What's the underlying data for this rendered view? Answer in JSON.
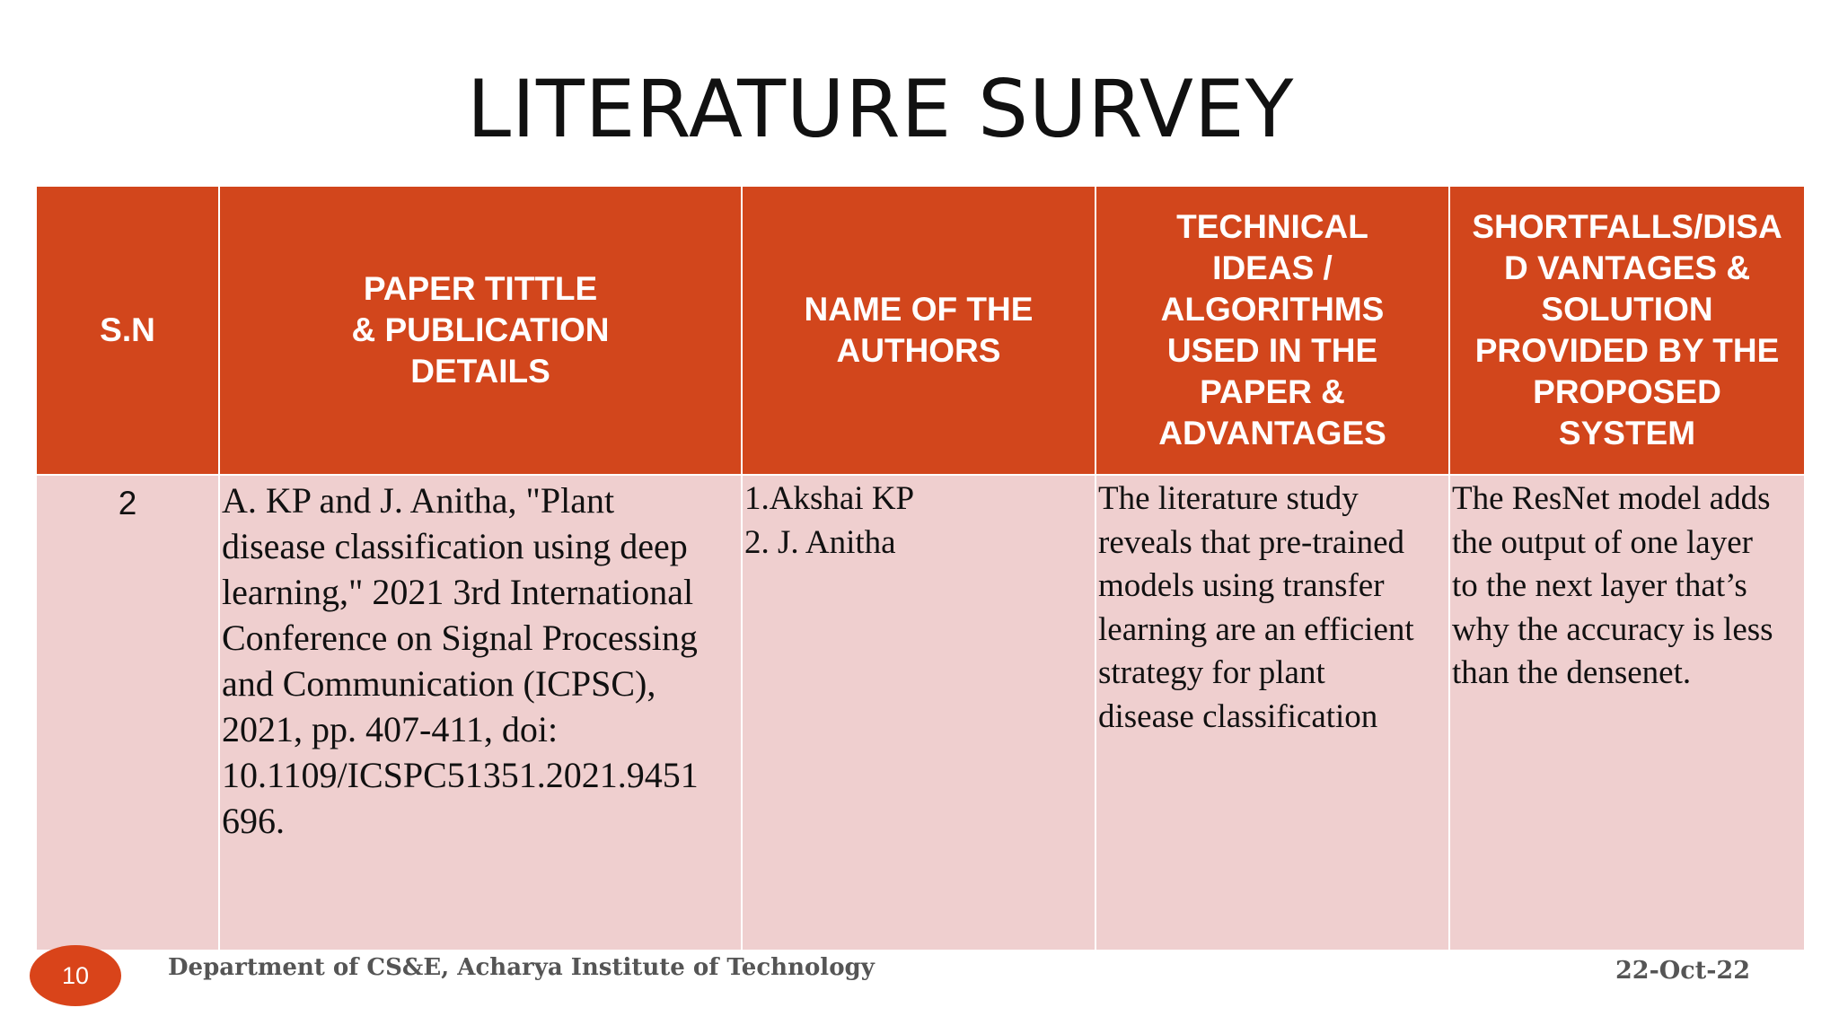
{
  "title": "LITERATURE SURVEY",
  "table": {
    "headers": [
      "S.N",
      "PAPER TITTLE\n& PUBLICATION\nDETAILS",
      "NAME OF THE\nAUTHORS",
      "TECHNICAL\nIDEAS /\nALGORITHMS\nUSED IN THE\nPAPER &\nADVANTAGES",
      "SHORTFALLS/DISA\nD VANTAGES  &\nSOLUTION\nPROVIDED BY THE\nPROPOSED\nSYSTEM"
    ],
    "row": {
      "sn": "2",
      "paper_lines": [
        "A. KP and J. Anitha, \"Plant",
        "disease classification using deep",
        "learning,\" 2021 3rd International",
        "Conference on Signal Processing",
        "and Communication (ICPSC),",
        "2021, pp. 407-411, doi:",
        "10.1109/ICSPC51351.2021.9451",
        "696."
      ],
      "authors_lines": [
        "1.Akshai KP",
        "2. J. Anitha"
      ],
      "technical_lines": [
        "The literature study",
        "reveals that pre-trained",
        "models using transfer",
        "learning are an efficient",
        "strategy for plant",
        "disease classification"
      ],
      "shortfalls_lines": [
        "The ResNet model adds",
        "the output of one layer",
        "to the next layer that’s",
        "why the accuracy is less",
        "than the densenet."
      ]
    }
  },
  "footer": {
    "slide_number": "10",
    "department": "Department of CS&E, Acharya Institute of Technology",
    "date": "22-Oct-22"
  },
  "colors": {
    "header_bg": "#d2461c",
    "body_bg": "#efcfcf",
    "badge_bg": "#d9441a"
  }
}
